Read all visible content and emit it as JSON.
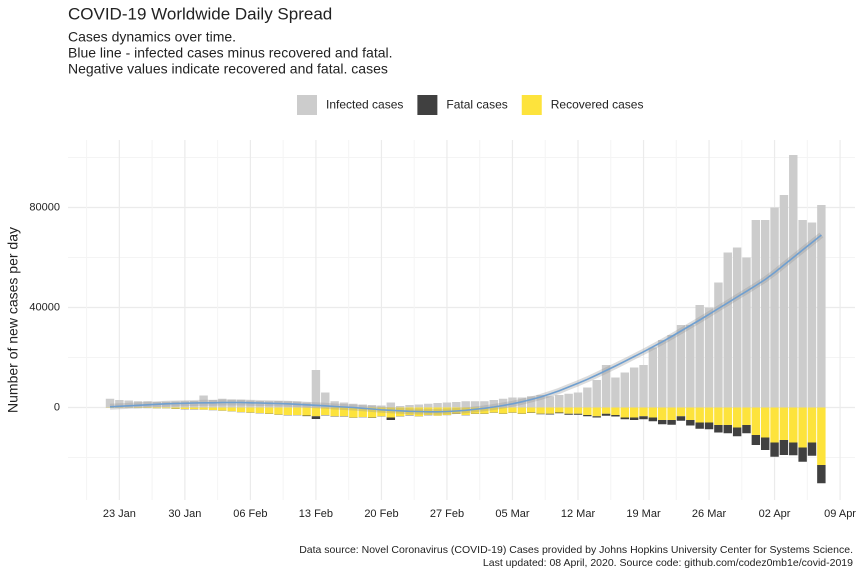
{
  "chart_data": {
    "type": "bar",
    "title": "COVID-19 Worldwide Daily Spread",
    "subtitle": [
      "Cases dynamics over time.",
      "Blue line - infected cases minus recovered and fatal.",
      "Negative values indicate recovered and fatal. cases"
    ],
    "y_label": "Number of new cases per day",
    "caption": [
      "Data source: Novel Coronavirus (COVID-19) Cases provided by Johns Hopkins University Center for Systems Science.",
      "Last updated: 08 April, 2020. Source code: github.com/codez0mb1e/covid-2019"
    ],
    "categories": [
      null,
      "23 Jan",
      null,
      null,
      null,
      null,
      null,
      null,
      "30 Jan",
      null,
      null,
      null,
      null,
      null,
      null,
      "06 Feb",
      null,
      null,
      null,
      null,
      null,
      null,
      "13 Feb",
      null,
      null,
      null,
      null,
      null,
      null,
      "20 Feb",
      null,
      null,
      null,
      null,
      null,
      null,
      "27 Feb",
      null,
      null,
      null,
      null,
      null,
      null,
      "05 Mar",
      null,
      null,
      null,
      null,
      null,
      null,
      "12 Mar",
      null,
      null,
      null,
      null,
      null,
      null,
      "19 Mar",
      null,
      null,
      null,
      null,
      null,
      null,
      "26 Mar",
      null,
      null,
      null,
      null,
      null,
      null,
      "02 Apr",
      null,
      null,
      null,
      null,
      null,
      null,
      "09 Apr"
    ],
    "series": [
      {
        "name": "Infected cases",
        "color": "#cccccc",
        "values": [
          3500,
          3000,
          2800,
          2500,
          2500,
          2200,
          2300,
          2400,
          2500,
          2600,
          4800,
          3000,
          3500,
          3200,
          3100,
          2800,
          2600,
          2500,
          2600,
          2500,
          2400,
          2000,
          15000,
          6000,
          2500,
          2000,
          1500,
          1200,
          1000,
          800,
          2000,
          600,
          1000,
          1200,
          1500,
          1800,
          2000,
          2200,
          2500,
          2500,
          2500,
          3000,
          3500,
          4000,
          4000,
          4500,
          5000,
          4500,
          5000,
          5500,
          6000,
          8000,
          11000,
          17000,
          12000,
          14000,
          16000,
          17000,
          24000,
          27000,
          29000,
          33000,
          33000,
          41000,
          40000,
          50000,
          62000,
          64000,
          60000,
          75000,
          75000,
          80000,
          85000,
          101000,
          75000,
          74000,
          81000,
          null,
          null
        ]
      },
      {
        "name": "Fatal cases",
        "color": "#404040",
        "values": [
          -20,
          -20,
          -20,
          -30,
          -30,
          -50,
          -50,
          -100,
          -100,
          -100,
          -50,
          -60,
          -70,
          -70,
          -80,
          -90,
          -100,
          -100,
          -100,
          -120,
          -100,
          -250,
          -1100,
          -150,
          -140,
          -140,
          -100,
          -100,
          -150,
          -100,
          -1000,
          -100,
          -150,
          -70,
          -100,
          -50,
          -50,
          -100,
          -100,
          -100,
          -100,
          -100,
          -100,
          -100,
          -100,
          -150,
          -200,
          -300,
          -300,
          -400,
          -400,
          -500,
          -500,
          -800,
          -600,
          -700,
          -1000,
          -1200,
          -1500,
          -1700,
          -1900,
          -1800,
          -2200,
          -2500,
          -2700,
          -3000,
          -3300,
          -3500,
          -3300,
          -4000,
          -5000,
          -5700,
          -6000,
          -5100,
          -5700,
          -5300,
          -7300,
          null,
          null
        ]
      },
      {
        "name": "Recovered cases",
        "color": "#fde33c",
        "values": [
          -100,
          -100,
          -100,
          -200,
          -200,
          -300,
          -300,
          -500,
          -600,
          -700,
          -800,
          -1000,
          -1200,
          -1500,
          -1800,
          -2000,
          -2200,
          -2500,
          -2800,
          -3000,
          -3000,
          -3200,
          -3500,
          -3000,
          -3500,
          -3500,
          -4000,
          -3800,
          -4000,
          -3500,
          -4000,
          -3500,
          -3000,
          -3500,
          -3000,
          -3200,
          -3000,
          -2500,
          -3000,
          -2500,
          -2500,
          -2000,
          -2500,
          -2000,
          -2500,
          -2000,
          -2500,
          -2500,
          -2000,
          -2500,
          -2500,
          -3000,
          -3500,
          -2500,
          -3000,
          -4000,
          -4000,
          -3500,
          -4000,
          -5000,
          -5000,
          -3500,
          -5000,
          -6000,
          -6000,
          -7000,
          -7000,
          -8000,
          -7000,
          -11000,
          -12000,
          -14000,
          -13000,
          -14000,
          -16000,
          -14000,
          -23000,
          null,
          null
        ]
      }
    ],
    "trend_line": {
      "color": "#6f9fd0",
      "values": [
        300,
        500,
        700,
        900,
        1100,
        1300,
        1500,
        1600,
        1700,
        1800,
        1900,
        1900,
        2000,
        2000,
        2000,
        1900,
        1800,
        1700,
        1600,
        1500,
        1300,
        1100,
        900,
        700,
        400,
        200,
        0,
        -300,
        -600,
        -900,
        -1100,
        -1300,
        -1500,
        -1600,
        -1700,
        -1700,
        -1600,
        -1400,
        -1100,
        -700,
        -300,
        200,
        800,
        1500,
        2300,
        3200,
        4200,
        5400,
        6700,
        8200,
        9700,
        11300,
        13000,
        14800,
        16600,
        18500,
        20400,
        22300,
        24300,
        26300,
        28400,
        30600,
        32800,
        35000,
        37300,
        39600,
        41900,
        44200,
        46500,
        48800,
        51200,
        54000,
        57000,
        60000,
        63000,
        66000,
        69000,
        null,
        null
      ]
    },
    "stacked": true,
    "ylim": [
      -37000,
      107000
    ],
    "yticks": [
      0,
      40000,
      80000
    ],
    "yminor": [
      -20000,
      20000,
      60000,
      100000
    ],
    "grid": true,
    "legend": "top"
  }
}
